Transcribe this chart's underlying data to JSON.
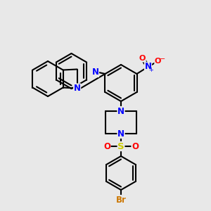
{
  "bg_color": "#e8e8e8",
  "bond_color": "#000000",
  "bond_width": 1.5,
  "atom_colors": {
    "N": "#0000ff",
    "O": "#ff0000",
    "S": "#cccc00",
    "Br": "#cc7700",
    "C": "#000000"
  },
  "font_size": 8.5,
  "fig_size": [
    3.0,
    3.0
  ],
  "dpi": 100
}
